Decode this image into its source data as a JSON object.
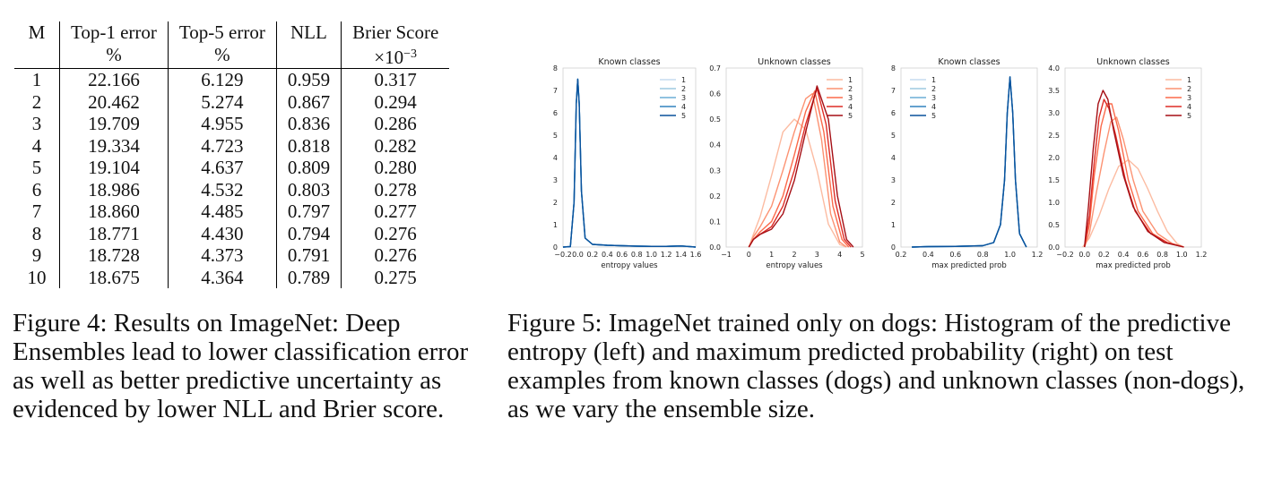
{
  "table": {
    "headers": [
      {
        "line1": "M",
        "line2": ""
      },
      {
        "line1": "Top-1 error",
        "line2": "%"
      },
      {
        "line1": "Top-5 error",
        "line2": "%"
      },
      {
        "line1": "NLL",
        "line2": ""
      },
      {
        "line1": "Brier Score",
        "line2": "×10",
        "line2_sup": "−3"
      }
    ],
    "rows": [
      [
        "1",
        "22.166",
        "6.129",
        "0.959",
        "0.317"
      ],
      [
        "2",
        "20.462",
        "5.274",
        "0.867",
        "0.294"
      ],
      [
        "3",
        "19.709",
        "4.955",
        "0.836",
        "0.286"
      ],
      [
        "4",
        "19.334",
        "4.723",
        "0.818",
        "0.282"
      ],
      [
        "5",
        "19.104",
        "4.637",
        "0.809",
        "0.280"
      ],
      [
        "6",
        "18.986",
        "4.532",
        "0.803",
        "0.278"
      ],
      [
        "7",
        "18.860",
        "4.485",
        "0.797",
        "0.277"
      ],
      [
        "8",
        "18.771",
        "4.430",
        "0.794",
        "0.276"
      ],
      [
        "9",
        "18.728",
        "4.373",
        "0.791",
        "0.276"
      ],
      [
        "10",
        "18.675",
        "4.364",
        "0.789",
        "0.275"
      ]
    ]
  },
  "captions": {
    "fig4": "Figure 4: Results on ImageNet: Deep Ensembles lead to lower classification error as well as better predictive uncertainty as evidenced by lower NLL and Brier score.",
    "fig5": "Figure 5: ImageNet trained only on dogs: Histogram of the predictive entropy (left) and maximum predicted probability (right) on test examples from known classes (dogs) and unknown classes (non-dogs), as we vary the ensemble size."
  },
  "chart_data": [
    {
      "type": "line",
      "title": "Known classes",
      "xlabel": "entropy values",
      "ylabel": "",
      "xlim": [
        -0.2,
        1.6
      ],
      "ylim": [
        0,
        8
      ],
      "xticks": [
        "−0.2",
        "0.0",
        "0.2",
        "0.4",
        "0.6",
        "0.8",
        "1.0",
        "1.2",
        "1.4",
        "1.6"
      ],
      "yticks": [
        "0",
        "1",
        "2",
        "3",
        "4",
        "5",
        "6",
        "7",
        "8"
      ],
      "legend": "top-right",
      "grid": false,
      "colors": [
        "#c6dbef",
        "#9ecae1",
        "#6baed6",
        "#3182bd",
        "#08519c"
      ],
      "series": [
        {
          "name": "1",
          "x": [
            -0.2,
            -0.1,
            -0.05,
            -0.02,
            0.0,
            0.02,
            0.05,
            0.1,
            0.2,
            0.4,
            0.6,
            0.8,
            1.0,
            1.2,
            1.4,
            1.6
          ],
          "y": [
            0,
            0.02,
            2.0,
            6.4,
            7.5,
            6.4,
            2.5,
            0.4,
            0.12,
            0.08,
            0.06,
            0.04,
            0.03,
            0.03,
            0.05,
            0
          ]
        },
        {
          "name": "2",
          "x": [
            -0.2,
            -0.1,
            -0.05,
            -0.02,
            0.0,
            0.02,
            0.05,
            0.1,
            0.2,
            0.4,
            0.6,
            0.8,
            1.0,
            1.2,
            1.4,
            1.6
          ],
          "y": [
            0,
            0.02,
            2.0,
            6.4,
            7.5,
            6.4,
            2.5,
            0.4,
            0.12,
            0.08,
            0.06,
            0.04,
            0.03,
            0.03,
            0.05,
            0
          ]
        },
        {
          "name": "3",
          "x": [
            -0.2,
            -0.1,
            -0.05,
            -0.02,
            0.0,
            0.02,
            0.05,
            0.1,
            0.2,
            0.4,
            0.6,
            0.8,
            1.0,
            1.2,
            1.4,
            1.6
          ],
          "y": [
            0,
            0.02,
            2.0,
            6.4,
            7.5,
            6.4,
            2.5,
            0.4,
            0.12,
            0.08,
            0.06,
            0.04,
            0.03,
            0.03,
            0.05,
            0
          ]
        },
        {
          "name": "4",
          "x": [
            -0.2,
            -0.1,
            -0.05,
            -0.02,
            0.0,
            0.02,
            0.05,
            0.1,
            0.2,
            0.4,
            0.6,
            0.8,
            1.0,
            1.2,
            1.4,
            1.6
          ],
          "y": [
            0,
            0.02,
            2.0,
            6.4,
            7.5,
            6.4,
            2.5,
            0.4,
            0.12,
            0.08,
            0.06,
            0.04,
            0.03,
            0.03,
            0.05,
            0
          ]
        },
        {
          "name": "5",
          "x": [
            -0.2,
            -0.1,
            -0.05,
            -0.02,
            0.0,
            0.02,
            0.05,
            0.1,
            0.2,
            0.4,
            0.6,
            0.8,
            1.0,
            1.2,
            1.4,
            1.6
          ],
          "y": [
            0,
            0.02,
            2.0,
            6.4,
            7.5,
            6.4,
            2.5,
            0.4,
            0.12,
            0.08,
            0.06,
            0.04,
            0.03,
            0.03,
            0.05,
            0
          ]
        }
      ]
    },
    {
      "type": "line",
      "title": "Unknown classes",
      "xlabel": "entropy values",
      "ylabel": "",
      "xlim": [
        -1,
        5
      ],
      "ylim": [
        0,
        0.7
      ],
      "xticks": [
        "−1",
        "0",
        "1",
        "2",
        "3",
        "4",
        "5"
      ],
      "yticks": [
        "0.0",
        "0.1",
        "0.2",
        "0.3",
        "0.4",
        "0.5",
        "0.6",
        "0.7"
      ],
      "legend": "top-right",
      "grid": false,
      "colors": [
        "#fcbba1",
        "#fc9272",
        "#fb6a4a",
        "#de2d26",
        "#a50f15"
      ],
      "series": [
        {
          "name": "1",
          "x": [
            0,
            0.2,
            0.5,
            1.0,
            1.5,
            2.0,
            2.5,
            3.0,
            3.5,
            4.0,
            4.3
          ],
          "y": [
            0,
            0.05,
            0.12,
            0.28,
            0.45,
            0.5,
            0.46,
            0.3,
            0.09,
            0.01,
            0
          ]
        },
        {
          "name": "2",
          "x": [
            0,
            0.2,
            0.5,
            1.0,
            1.5,
            2.0,
            2.5,
            2.8,
            3.2,
            3.6,
            4.0,
            4.3
          ],
          "y": [
            0,
            0.04,
            0.08,
            0.16,
            0.3,
            0.45,
            0.58,
            0.6,
            0.42,
            0.13,
            0.02,
            0
          ]
        },
        {
          "name": "3",
          "x": [
            0,
            0.2,
            0.5,
            1.0,
            1.5,
            2.0,
            2.5,
            2.9,
            3.3,
            3.7,
            4.1,
            4.4
          ],
          "y": [
            0,
            0.03,
            0.06,
            0.1,
            0.2,
            0.36,
            0.53,
            0.61,
            0.45,
            0.16,
            0.03,
            0
          ]
        },
        {
          "name": "4",
          "x": [
            0,
            0.2,
            0.5,
            1.0,
            1.5,
            2.0,
            2.5,
            3.0,
            3.4,
            3.8,
            4.2,
            4.5
          ],
          "y": [
            0,
            0.03,
            0.05,
            0.08,
            0.16,
            0.3,
            0.48,
            0.62,
            0.48,
            0.18,
            0.03,
            0
          ]
        },
        {
          "name": "5",
          "x": [
            0,
            0.2,
            0.5,
            1.0,
            1.5,
            2.0,
            2.5,
            3.0,
            3.5,
            3.9,
            4.3,
            4.6
          ],
          "y": [
            0,
            0.03,
            0.05,
            0.07,
            0.13,
            0.26,
            0.45,
            0.63,
            0.5,
            0.2,
            0.03,
            0
          ]
        }
      ]
    },
    {
      "type": "line",
      "title": "Known classes",
      "xlabel": "max predicted prob",
      "ylabel": "",
      "xlim": [
        0.2,
        1.2
      ],
      "ylim": [
        0,
        8
      ],
      "xticks": [
        "0.2",
        "0.4",
        "0.6",
        "0.8",
        "1.0",
        "1.2"
      ],
      "yticks": [
        "0",
        "1",
        "2",
        "3",
        "4",
        "5",
        "6",
        "7",
        "8"
      ],
      "legend": "top-left",
      "grid": false,
      "colors": [
        "#c6dbef",
        "#9ecae1",
        "#6baed6",
        "#3182bd",
        "#08519c"
      ],
      "series": [
        {
          "name": "1",
          "x": [
            0.28,
            0.4,
            0.6,
            0.8,
            0.88,
            0.93,
            0.96,
            0.98,
            1.0,
            1.02,
            1.04,
            1.07,
            1.12
          ],
          "y": [
            0,
            0.02,
            0.03,
            0.06,
            0.2,
            1.0,
            3.0,
            6.0,
            7.6,
            6.0,
            3.0,
            0.6,
            0
          ]
        },
        {
          "name": "2",
          "x": [
            0.28,
            0.4,
            0.6,
            0.8,
            0.88,
            0.93,
            0.96,
            0.98,
            1.0,
            1.02,
            1.04,
            1.07,
            1.12
          ],
          "y": [
            0,
            0.02,
            0.03,
            0.06,
            0.2,
            1.0,
            3.0,
            6.0,
            7.6,
            6.0,
            3.0,
            0.6,
            0
          ]
        },
        {
          "name": "3",
          "x": [
            0.28,
            0.4,
            0.6,
            0.8,
            0.88,
            0.93,
            0.96,
            0.98,
            1.0,
            1.02,
            1.04,
            1.07,
            1.12
          ],
          "y": [
            0,
            0.02,
            0.03,
            0.06,
            0.2,
            1.0,
            3.0,
            6.0,
            7.6,
            6.0,
            3.0,
            0.6,
            0
          ]
        },
        {
          "name": "4",
          "x": [
            0.28,
            0.4,
            0.6,
            0.8,
            0.88,
            0.93,
            0.96,
            0.98,
            1.0,
            1.02,
            1.04,
            1.07,
            1.12
          ],
          "y": [
            0,
            0.02,
            0.03,
            0.06,
            0.2,
            1.0,
            3.0,
            6.0,
            7.6,
            6.0,
            3.0,
            0.6,
            0
          ]
        },
        {
          "name": "5",
          "x": [
            0.28,
            0.4,
            0.6,
            0.8,
            0.88,
            0.93,
            0.96,
            0.98,
            1.0,
            1.02,
            1.04,
            1.07,
            1.12
          ],
          "y": [
            0,
            0.02,
            0.03,
            0.06,
            0.2,
            1.0,
            3.0,
            6.0,
            7.6,
            6.0,
            3.0,
            0.6,
            0
          ]
        }
      ]
    },
    {
      "type": "line",
      "title": "Unknown classes",
      "xlabel": "max predicted prob",
      "ylabel": "",
      "xlim": [
        -0.2,
        1.2
      ],
      "ylim": [
        0,
        4.0
      ],
      "xticks": [
        "−0.2",
        "0.0",
        "0.2",
        "0.4",
        "0.6",
        "0.8",
        "1.0",
        "1.2"
      ],
      "yticks": [
        "0.0",
        "0.5",
        "1.0",
        "1.5",
        "2.0",
        "2.5",
        "3.0",
        "3.5",
        "4.0"
      ],
      "legend": "top-right",
      "grid": false,
      "colors": [
        "#fcbba1",
        "#fc9272",
        "#fb6a4a",
        "#de2d26",
        "#a50f15"
      ],
      "series": [
        {
          "name": "1",
          "x": [
            -0.02,
            0.05,
            0.15,
            0.25,
            0.35,
            0.45,
            0.55,
            0.65,
            0.75,
            0.85,
            0.95,
            1.02
          ],
          "y": [
            0,
            0.2,
            0.7,
            1.3,
            1.8,
            1.95,
            1.75,
            1.3,
            0.8,
            0.35,
            0.08,
            0
          ]
        },
        {
          "name": "2",
          "x": [
            0.0,
            0.05,
            0.12,
            0.2,
            0.27,
            0.33,
            0.4,
            0.5,
            0.6,
            0.75,
            0.9,
            1.02
          ],
          "y": [
            0,
            0.3,
            1.2,
            2.1,
            2.8,
            2.9,
            2.4,
            1.5,
            0.8,
            0.3,
            0.08,
            0
          ]
        },
        {
          "name": "3",
          "x": [
            0.0,
            0.05,
            0.1,
            0.17,
            0.23,
            0.28,
            0.35,
            0.45,
            0.55,
            0.7,
            0.85,
            1.02
          ],
          "y": [
            0,
            0.5,
            1.6,
            2.7,
            3.2,
            3.2,
            2.6,
            1.5,
            0.8,
            0.3,
            0.1,
            0
          ]
        },
        {
          "name": "4",
          "x": [
            0.0,
            0.05,
            0.1,
            0.15,
            0.2,
            0.25,
            0.32,
            0.42,
            0.52,
            0.68,
            0.85,
            1.02
          ],
          "y": [
            0,
            0.7,
            1.9,
            2.9,
            3.3,
            3.1,
            2.5,
            1.5,
            0.8,
            0.3,
            0.1,
            0
          ]
        },
        {
          "name": "5",
          "x": [
            0.0,
            0.04,
            0.09,
            0.14,
            0.19,
            0.24,
            0.3,
            0.4,
            0.5,
            0.65,
            0.82,
            1.02
          ],
          "y": [
            0,
            0.9,
            2.2,
            3.2,
            3.5,
            3.3,
            2.6,
            1.6,
            0.9,
            0.35,
            0.1,
            0
          ]
        }
      ]
    }
  ]
}
